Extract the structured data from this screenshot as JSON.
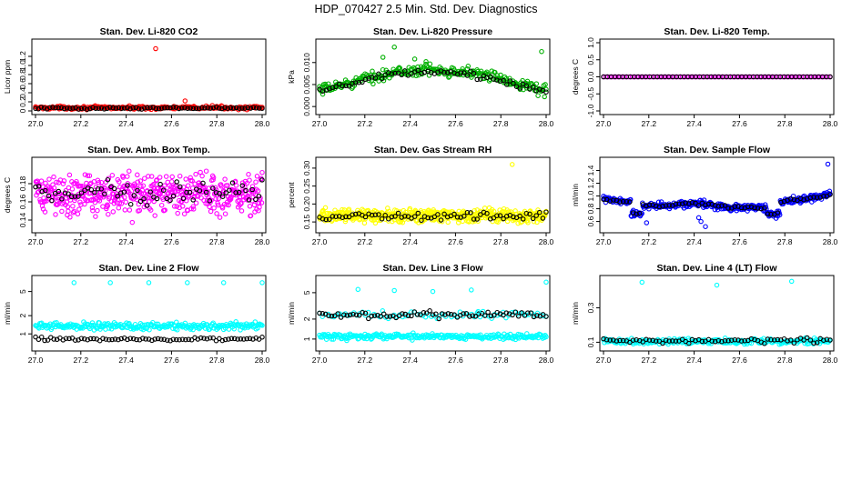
{
  "figure": {
    "title": "HDP_070427  2.5 Min. Std. Dev. Diagnostics"
  },
  "chart_data": [
    {
      "id": "co2",
      "type": "scatter",
      "title": "Stan. Dev. Li-820 CO2",
      "ylabel": "Licor ppm",
      "xlim": [
        27.0,
        28.0
      ],
      "ylim": [
        0,
        1.5
      ],
      "yticks": [
        0,
        0.2,
        0.4,
        0.6,
        0.8,
        1.0,
        1.2
      ],
      "ytick_labels": [
        "0",
        "0.2",
        "0.4",
        "0.6",
        "0.8",
        "1.0",
        "1.2"
      ],
      "grid": false,
      "series": [
        {
          "name": "raw",
          "color": "#ff0000",
          "gen": {
            "n": 240,
            "base": 0.07,
            "amp": 0.0,
            "trend": "flat",
            "noise": 0.05
          },
          "points": [
            [
              27.53,
              1.37
            ],
            [
              27.66,
              0.22
            ],
            [
              27.78,
              0.12
            ],
            [
              27.8,
              0.1
            ],
            [
              27.7,
              0.09
            ]
          ]
        },
        {
          "name": "block",
          "color": "#000000",
          "gen": {
            "n": 80,
            "base": 0.06,
            "amp": 0.0,
            "trend": "flat",
            "noise": 0.03
          }
        }
      ]
    },
    {
      "id": "pressure",
      "type": "scatter",
      "title": "Stan. Dev. Li-820 Pressure",
      "ylabel": "kPa",
      "xlim": [
        27.0,
        28.0
      ],
      "ylim": [
        -0.001,
        0.0145
      ],
      "yticks": [
        0,
        0.005,
        0.01
      ],
      "ytick_labels": [
        "0.000",
        "0.005",
        "0.010"
      ],
      "grid": false,
      "series": [
        {
          "name": "raw",
          "color": "#00b000",
          "gen": {
            "n": 280,
            "base": 0.0035,
            "amp": 0.0048,
            "trend": "arch",
            "noise": 0.0018
          },
          "points": [
            [
              27.33,
              0.0135
            ],
            [
              27.28,
              0.0112
            ],
            [
              27.42,
              0.0108
            ],
            [
              27.98,
              0.0125
            ],
            [
              27.47,
              0.0102
            ]
          ]
        },
        {
          "name": "block",
          "color": "#000000",
          "gen": {
            "n": 70,
            "base": 0.0033,
            "amp": 0.0045,
            "trend": "arch",
            "noise": 0.001
          }
        }
      ]
    },
    {
      "id": "temp",
      "type": "scatter",
      "title": "Stan. Dev. Li-820 Temp.",
      "ylabel": "degrees C",
      "xlim": [
        27.0,
        28.0
      ],
      "ylim": [
        -1.0,
        1.0
      ],
      "yticks": [
        -1.0,
        -0.5,
        0,
        0.5,
        1.0
      ],
      "ytick_labels": [
        "-1.0",
        "-0.5",
        "0.0",
        "0.5",
        "1.0"
      ],
      "grid": false,
      "series": [
        {
          "name": "raw",
          "color": "#ff00ff",
          "gen": {
            "n": 110,
            "base": 0.0,
            "amp": 0.0,
            "trend": "flat",
            "noise": 0.0
          }
        },
        {
          "name": "block",
          "color": "#000000",
          "gen": {
            "n": 60,
            "base": 0.0,
            "amp": 0.0,
            "trend": "flat",
            "noise": 0.0
          }
        }
      ]
    },
    {
      "id": "ambbox",
      "type": "scatter",
      "title": "Stan. Dev. Amb. Box Temp.",
      "ylabel": "degrees C",
      "xlim": [
        27.0,
        28.0
      ],
      "ylim": [
        0.13,
        0.205
      ],
      "yticks": [
        0.14,
        0.16,
        0.18
      ],
      "ytick_labels": [
        "0.14",
        "0.16",
        "0.18"
      ],
      "grid": false,
      "series": [
        {
          "name": "raw",
          "color": "#ff00ff",
          "gen": {
            "n": 500,
            "base": 0.168,
            "amp": 0.0,
            "trend": "flat",
            "noise": 0.032
          }
        },
        {
          "name": "block",
          "color": "#000000",
          "gen": {
            "n": 70,
            "base": 0.17,
            "amp": 0.0,
            "trend": "flat",
            "noise": 0.02
          }
        }
      ]
    },
    {
      "id": "gasrh",
      "type": "scatter",
      "title": "Stan. Dev. Gas Stream RH",
      "ylabel": "percent",
      "xlim": [
        27.0,
        28.0
      ],
      "ylim": [
        0.13,
        0.32
      ],
      "yticks": [
        0.15,
        0.2,
        0.25,
        0.3
      ],
      "ytick_labels": [
        "0.15",
        "0.20",
        "0.25",
        "0.30"
      ],
      "grid": false,
      "series": [
        {
          "name": "raw",
          "color": "#ffff00",
          "gen": {
            "n": 500,
            "base": 0.168,
            "amp": 0.0,
            "trend": "flat",
            "noise": 0.026
          }
        },
        {
          "name": "block",
          "color": "#000000",
          "gen": {
            "n": 70,
            "base": 0.166,
            "amp": 0.0,
            "trend": "flat",
            "noise": 0.016
          }
        }
      ],
      "extra": [
        {
          "color": "#ffff00",
          "points": [
            [
              27.85,
              0.31
            ]
          ]
        }
      ]
    },
    {
      "id": "sampleflow",
      "type": "scatter",
      "title": "Stan. Dev. Sample Flow",
      "ylabel": "ml/min",
      "xlim": [
        27.0,
        28.0
      ],
      "ylim": [
        0.48,
        1.55
      ],
      "yticks": [
        0.6,
        0.8,
        1.0,
        1.2,
        1.4
      ],
      "ytick_labels": [
        "0.6",
        "0.8",
        "1.0",
        "1.2",
        "1.4"
      ],
      "grid": false,
      "series": [
        {
          "name": "raw",
          "color": "#0000ff",
          "gen": {
            "n": 420,
            "base": 0.88,
            "amp": 0.0,
            "trend": "sampleflow",
            "noise": 0.08
          }
        },
        {
          "name": "block",
          "color": "#000000",
          "gen": {
            "n": 70,
            "base": 0.88,
            "amp": 0.0,
            "trend": "sampleflow",
            "noise": 0.03
          }
        }
      ],
      "extra": [
        {
          "color": "#0000ff",
          "points": [
            [
              27.99,
              1.5
            ],
            [
              27.43,
              0.6
            ],
            [
              27.45,
              0.52
            ],
            [
              27.19,
              0.58
            ],
            [
              27.42,
              0.66
            ]
          ]
        }
      ]
    },
    {
      "id": "line2",
      "type": "scatter",
      "title": "Stan. Dev. Line 2 Flow",
      "ylabel": "ml/min",
      "log": true,
      "xlim": [
        27.0,
        28.0
      ],
      "ylim": [
        0.6,
        8.0
      ],
      "yticks": [
        1,
        2,
        5
      ],
      "ytick_labels": [
        "1",
        "2",
        "5"
      ],
      "grid": false,
      "series": [
        {
          "name": "raw",
          "color": "#00ffff",
          "gen": {
            "n": 260,
            "base": 1.35,
            "amp": 0.0,
            "trend": "flat",
            "noise": 0.08,
            "logNoise": true
          }
        },
        {
          "name": "block",
          "color": "#000000",
          "gen": {
            "n": 75,
            "base": 0.82,
            "amp": 0.0,
            "trend": "flat",
            "noise": 0.04,
            "logNoise": true
          }
        }
      ],
      "extra": [
        {
          "color": "#00ffff",
          "points": [
            [
              27.17,
              7.0
            ],
            [
              27.33,
              7.0
            ],
            [
              27.5,
              7.0
            ],
            [
              27.67,
              7.0
            ],
            [
              27.83,
              7.0
            ],
            [
              28.0,
              7.0
            ]
          ]
        }
      ]
    },
    {
      "id": "line3",
      "type": "scatter",
      "title": "Stan. Dev. Line 3 Flow",
      "ylabel": "ml/min",
      "log": true,
      "xlim": [
        27.0,
        28.0
      ],
      "ylim": [
        0.75,
        8.0
      ],
      "yticks": [
        1,
        2,
        5
      ],
      "ytick_labels": [
        "1",
        "2",
        "5"
      ],
      "grid": false,
      "series": [
        {
          "name": "raw",
          "color": "#00ffff",
          "gen": {
            "n": 260,
            "base": 1.1,
            "amp": 0.0,
            "trend": "flat",
            "noise": 0.06,
            "logNoise": true
          }
        },
        {
          "name": "rawhi",
          "color": "#00ffff",
          "gen": {
            "n": 80,
            "base": 2.3,
            "amp": 0.0,
            "trend": "flat",
            "noise": 0.08,
            "logNoise": true
          }
        },
        {
          "name": "block",
          "color": "#000000",
          "gen": {
            "n": 75,
            "base": 2.3,
            "amp": 0.0,
            "trend": "flat",
            "noise": 0.07,
            "logNoise": true
          }
        }
      ],
      "extra": [
        {
          "color": "#00ffff",
          "points": [
            [
              27.17,
              5.6
            ],
            [
              27.33,
              5.4
            ],
            [
              27.5,
              5.2
            ],
            [
              27.67,
              5.5
            ],
            [
              28.0,
              7.2
            ],
            [
              27.12,
              0.95
            ],
            [
              27.7,
              2.6
            ]
          ]
        }
      ]
    },
    {
      "id": "line4",
      "type": "scatter",
      "title": "Stan. Dev. Line 4 (LT) Flow",
      "ylabel": "ml/min",
      "log": true,
      "xlim": [
        27.0,
        28.0
      ],
      "ylim": [
        0.085,
        0.75
      ],
      "yticks": [
        0.1,
        0.3
      ],
      "ytick_labels": [
        "0.1",
        "0.3"
      ],
      "grid": false,
      "series": [
        {
          "name": "raw",
          "color": "#00ffff",
          "gen": {
            "n": 260,
            "base": 0.103,
            "amp": 0.0,
            "trend": "flat",
            "noise": 0.05,
            "logNoise": true
          }
        },
        {
          "name": "block",
          "color": "#000000",
          "gen": {
            "n": 70,
            "base": 0.105,
            "amp": 0.0,
            "trend": "flat",
            "noise": 0.05,
            "logNoise": true
          }
        }
      ],
      "extra": [
        {
          "color": "#00ffff",
          "points": [
            [
              27.17,
              0.68
            ],
            [
              27.5,
              0.62
            ],
            [
              27.83,
              0.7
            ]
          ]
        }
      ]
    }
  ],
  "xticks": [
    27.0,
    27.2,
    27.4,
    27.6,
    27.8,
    28.0
  ],
  "xtick_labels": [
    "27.0",
    "27.2",
    "27.4",
    "27.6",
    "27.8",
    "28.0"
  ]
}
